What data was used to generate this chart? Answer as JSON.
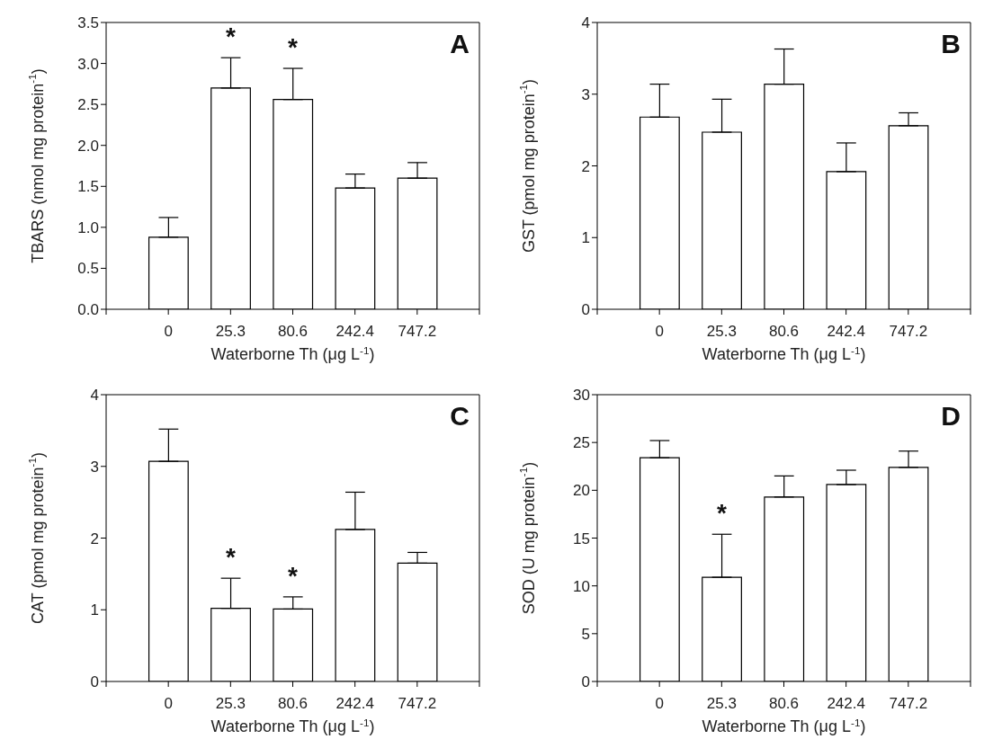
{
  "chart_data": [
    {
      "type": "bar",
      "categories": [
        "0",
        "25.3",
        "80.6",
        "242.4",
        "747.2"
      ],
      "values": [
        0.88,
        2.7,
        2.56,
        1.48,
        1.6
      ],
      "errors": [
        [
          0.88,
          1.12
        ],
        [
          2.7,
          3.07
        ],
        [
          2.56,
          2.94
        ],
        [
          1.48,
          1.65
        ],
        [
          1.6,
          1.79
        ]
      ],
      "color": "#ffffff",
      "xlabel": "Waterborne Th (μg L$^{-1}$)",
      "ylabel": "TBARS (nmol mg protein$^{-1}$)",
      "ylim": [
        0,
        3.5
      ],
      "yticks": [
        {
          "value": 0,
          "label": "0.0"
        },
        0.5,
        {
          "value": 1,
          "label": "1.0"
        },
        1.5,
        {
          "value": 2,
          "label": "2.0"
        },
        2.5,
        {
          "value": 3,
          "label": "3.0"
        },
        3.5
      ],
      "grid": false,
      "legend": false,
      "annotations": [
        "A",
        {
          "text": "*",
          "x": "25.3",
          "y": 3.07
        },
        {
          "text": "*",
          "x": "80.6",
          "y": 2.94
        }
      ]
    },
    {
      "type": "bar",
      "categories": [
        "0",
        "25.3",
        "80.6",
        "242.4",
        "747.2"
      ],
      "values": [
        2.68,
        2.47,
        3.14,
        1.92,
        2.56
      ],
      "errors": [
        [
          2.68,
          3.14
        ],
        [
          2.47,
          2.93
        ],
        [
          3.14,
          3.63
        ],
        [
          1.92,
          2.32
        ],
        [
          2.56,
          2.74
        ]
      ],
      "color": "#ffffff",
      "xlabel": "Waterborne Th (μg L$^{-1}$)",
      "ylabel": "GST (pmol mg protein$^{-1}$)",
      "ylim": [
        0,
        4
      ],
      "yticks": [
        0,
        1,
        2,
        3,
        4
      ],
      "grid": false,
      "legend": false,
      "annotations": [
        "B"
      ]
    },
    {
      "type": "bar",
      "categories": [
        "0",
        "25.3",
        "80.6",
        "242.4",
        "747.2"
      ],
      "values": [
        3.07,
        1.02,
        1.01,
        2.12,
        1.65
      ],
      "errors": [
        [
          3.07,
          3.52
        ],
        [
          1.02,
          1.44
        ],
        [
          1.01,
          1.18
        ],
        [
          2.12,
          2.64
        ],
        [
          1.65,
          1.8
        ]
      ],
      "color": "#ffffff",
      "xlabel": "Waterborne Th (μg L$^{-1}$)",
      "ylabel": "CAT (pmol mg protein$^{-1}$)",
      "ylim": [
        0,
        4
      ],
      "yticks": [
        0,
        1,
        2,
        3,
        4
      ],
      "grid": false,
      "legend": false,
      "annotations": [
        "C",
        {
          "text": "*",
          "x": "25.3",
          "y": 1.44
        },
        {
          "text": "*",
          "x": "80.6",
          "y": 1.18
        }
      ]
    },
    {
      "type": "bar",
      "categories": [
        "0",
        "25.3",
        "80.6",
        "242.4",
        "747.2"
      ],
      "values": [
        23.4,
        10.9,
        19.3,
        20.6,
        22.4
      ],
      "errors": [
        [
          23.4,
          25.2
        ],
        [
          10.9,
          15.4
        ],
        [
          19.3,
          21.5
        ],
        [
          20.6,
          22.1
        ],
        [
          22.4,
          24.1
        ]
      ],
      "color": "#ffffff",
      "xlabel": "Waterborne Th (μg L$^{-1}$)",
      "ylabel": "SOD (U mg protein$^{-1}$)",
      "ylim": [
        0,
        30
      ],
      "yticks": [
        0,
        5,
        10,
        15,
        20,
        25,
        30
      ],
      "grid": false,
      "legend": false,
      "annotations": [
        "D",
        {
          "text": "*",
          "x": "25.3",
          "y": 15.4
        }
      ]
    }
  ]
}
